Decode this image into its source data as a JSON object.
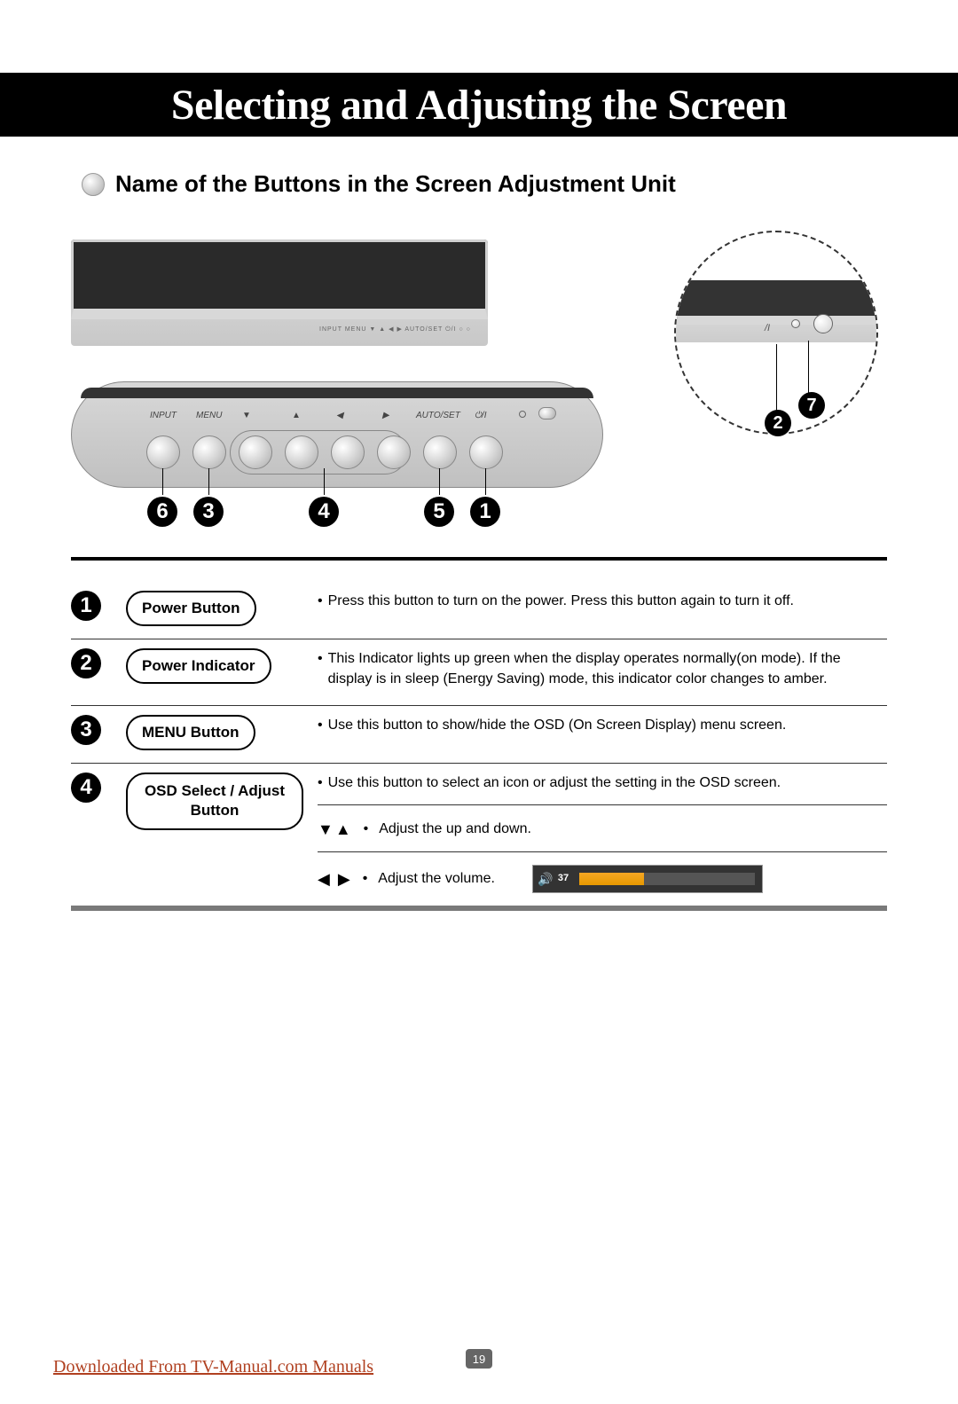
{
  "title": "Selecting and Adjusting the Screen",
  "section_heading": "Name of the Buttons in the Screen Adjustment Unit",
  "panel_labels": {
    "input": "INPUT",
    "menu": "MENU",
    "autoset": "AUTO/SET"
  },
  "small_strip": "INPUT   MENU   ▼   ▲   ◀   ▶   AUTO/SET  ⏻/I   ○  ○",
  "diagram_numbers": {
    "below_panel": [
      "6",
      "3",
      "4",
      "5",
      "1"
    ],
    "zoom_right": [
      "2",
      "7"
    ]
  },
  "rows": [
    {
      "num": "1",
      "label": "Power Button",
      "lines": [
        "Press this button to turn on the power. Press this button again to turn it off."
      ]
    },
    {
      "num": "2",
      "label": "Power Indicator",
      "lines": [
        "This Indicator lights up green when the display operates normally(on mode). If the display is in sleep (Energy Saving) mode, this indicator color changes to amber."
      ]
    },
    {
      "num": "3",
      "label": "MENU Button",
      "lines": [
        "Use this button to show/hide the OSD (On Screen Display) menu screen."
      ]
    },
    {
      "num": "4",
      "label": "OSD Select / Adjust Button",
      "lines": [
        "Use this button to select an icon or adjust the setting in the OSD screen."
      ],
      "sub": [
        {
          "glyph": "▼▲",
          "text": "Adjust the up and down."
        },
        {
          "glyph": "◀ ▶",
          "text": "Adjust the volume.",
          "volume": true
        }
      ]
    }
  ],
  "volume": {
    "value": 37,
    "max": 100,
    "fill_color": "#f5a623",
    "track_color": "#555555",
    "bg_color": "#333333"
  },
  "page_number": "19",
  "download_text": "Downloaded From TV-Manual.com Manuals",
  "colors": {
    "title_bg": "#000000",
    "title_fg": "#ffffff",
    "link": "#b04020",
    "bottom_bar": "#7a7a7a"
  }
}
